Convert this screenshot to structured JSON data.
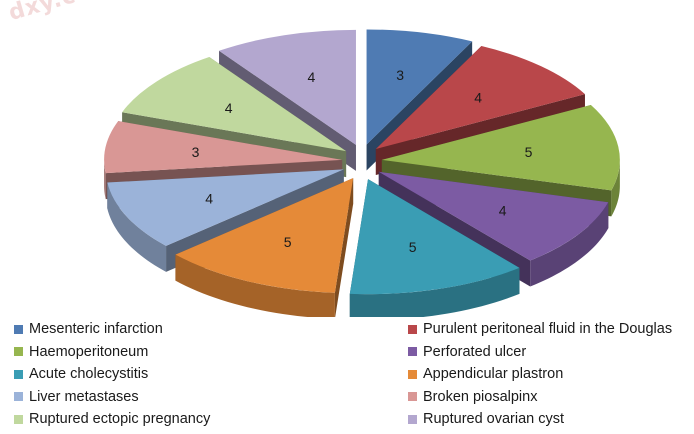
{
  "watermark": "dxy.com",
  "colors": {
    "background": "#ffffff",
    "series": [
      "#4F7BB3",
      "#B9474A",
      "#96B64F",
      "#7C5BA3",
      "#3A9DB4",
      "#E58A38",
      "#9BB3D9",
      "#D99795",
      "#C0D89E",
      "#B3A7CF"
    ]
  },
  "chart_data": {
    "type": "pie",
    "style": "3d-exploded",
    "categories": [
      "Mesenteric infarction",
      "Purulent peritoneal fluid in the Douglas",
      "Haemoperitoneum",
      "Perforated ulcer",
      "Acute cholecystitis",
      "Appendicular plastron",
      "Liver metastases",
      "Broken piosalpinx",
      "Ruptured ectopic pregnancy",
      "Ruptured ovarian cyst"
    ],
    "values": [
      3,
      4,
      5,
      4,
      5,
      5,
      4,
      3,
      4,
      4
    ],
    "legend_position": "bottom",
    "legend_columns": 2
  }
}
